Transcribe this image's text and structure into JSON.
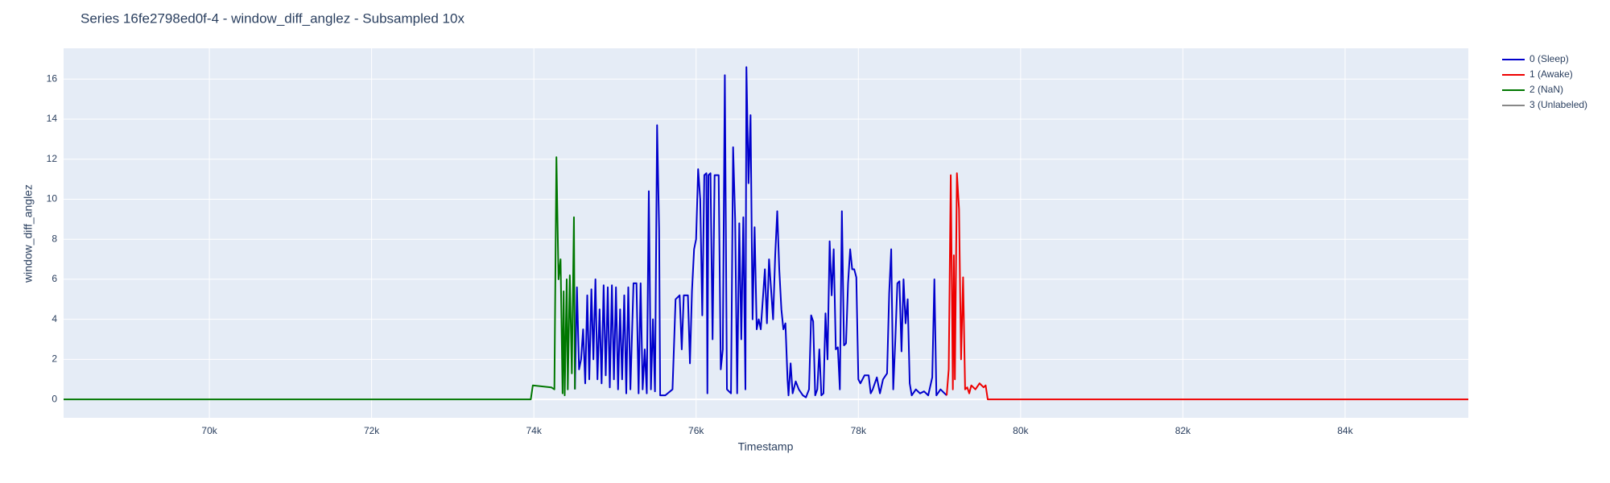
{
  "chart_data": {
    "type": "line",
    "title": "Series 16fe2798ed0f-4 - window_diff_anglez - Subsampled 10x",
    "x_label": "Timestamp",
    "y_label": "window_diff_anglez",
    "xlim": [
      68203,
      85519
    ],
    "ylim": [
      -0.92,
      17.54
    ],
    "xticks": [
      {
        "value": 70000,
        "label": "70k"
      },
      {
        "value": 72000,
        "label": "72k"
      },
      {
        "value": 74000,
        "label": "74k"
      },
      {
        "value": 76000,
        "label": "76k"
      },
      {
        "value": 78000,
        "label": "78k"
      },
      {
        "value": 80000,
        "label": "80k"
      },
      {
        "value": 82000,
        "label": "82k"
      },
      {
        "value": 84000,
        "label": "84k"
      }
    ],
    "yticks": [
      0,
      2,
      4,
      6,
      8,
      10,
      12,
      14,
      16
    ],
    "grid": true,
    "legend": "top-right",
    "series": [
      {
        "name": "0 (Sleep)",
        "color": "#0000cc",
        "x": [
          74506,
          74531,
          74557,
          74582,
          74607,
          74633,
          74658,
          74683,
          74709,
          74734,
          74759,
          74784,
          74810,
          74835,
          74860,
          74886,
          74911,
          74936,
          74962,
          74987,
          75012,
          75038,
          75063,
          75088,
          75114,
          75139,
          75164,
          75190,
          75228,
          75265,
          75291,
          75316,
          75341,
          75367,
          75392,
          75417,
          75443,
          75468,
          75493,
          75519,
          75544,
          75557,
          75620,
          75709,
          75747,
          75797,
          75823,
          75848,
          75899,
          75924,
          75949,
          75975,
          76000,
          76025,
          76051,
          76076,
          76101,
          76127,
          76139,
          76152,
          76177,
          76203,
          76228,
          76278,
          76304,
          76329,
          76354,
          76380,
          76405,
          76430,
          76456,
          76481,
          76506,
          76532,
          76557,
          76582,
          76608,
          76620,
          76646,
          76671,
          76696,
          76721,
          76747,
          76772,
          76797,
          76848,
          76873,
          76899,
          76924,
          76949,
          76975,
          77000,
          77025,
          77051,
          77076,
          77101,
          77127,
          77139,
          77165,
          77190,
          77228,
          77266,
          77316,
          77354,
          77392,
          77418,
          77443,
          77468,
          77494,
          77519,
          77544,
          77570,
          77595,
          77620,
          77646,
          77671,
          77696,
          77722,
          77747,
          77772,
          77797,
          77823,
          77848,
          77873,
          77899,
          77924,
          77949,
          77975,
          78000,
          78025,
          78076,
          78127,
          78152,
          78177,
          78228,
          78266,
          78304,
          78354,
          78380,
          78405,
          78430,
          78456,
          78481,
          78506,
          78532,
          78557,
          78582,
          78608,
          78633,
          78658,
          78709,
          78760,
          78810,
          78861,
          78911,
          78937,
          78962,
          79013,
          79063,
          79089
        ],
        "values": [
          0.5,
          5.6,
          1.5,
          2,
          3.5,
          0.8,
          5.2,
          1,
          5.5,
          2,
          6,
          1,
          4.5,
          0.8,
          5.7,
          1.2,
          5.6,
          0.6,
          5.7,
          1,
          5.6,
          0.5,
          4.5,
          1,
          5.2,
          0.3,
          5.6,
          0.5,
          5.8,
          5.8,
          0.3,
          5.8,
          0.5,
          2.5,
          0.3,
          10.4,
          0.5,
          4,
          0.4,
          13.7,
          8.5,
          0.2,
          0.2,
          0.5,
          5,
          5.2,
          2.5,
          5.2,
          5.2,
          1.8,
          5.4,
          7.5,
          8,
          11.5,
          10,
          4.2,
          11.2,
          11.3,
          0.3,
          11.2,
          11.3,
          3,
          11.2,
          11.2,
          1.5,
          2.5,
          16.2,
          0.5,
          0.4,
          0.3,
          12.6,
          9,
          0.3,
          8.8,
          3,
          9.1,
          0.5,
          16.6,
          10.8,
          14.2,
          4,
          8.6,
          3.5,
          4,
          3.5,
          6.5,
          3.8,
          7,
          5.5,
          4,
          7.2,
          9.4,
          6.5,
          4.5,
          3.5,
          3.8,
          1,
          0.2,
          1.8,
          0.3,
          0.9,
          0.5,
          0.2,
          0.1,
          0.5,
          4.2,
          3.9,
          0.2,
          0.5,
          2.5,
          0.2,
          0.3,
          4.3,
          2,
          7.9,
          5.2,
          7.5,
          2.5,
          2.6,
          0.5,
          9.4,
          2.7,
          2.8,
          5.8,
          7.5,
          6.5,
          6.5,
          6.1,
          1,
          0.8,
          1.2,
          1.2,
          0.3,
          0.5,
          1.1,
          0.3,
          1,
          1.3,
          5.3,
          7.5,
          0.5,
          3,
          5.8,
          5.9,
          2.4,
          6,
          3.8,
          5,
          0.8,
          0.2,
          0.5,
          0.3,
          0.4,
          0.2,
          1.1,
          6,
          0.2,
          0.5,
          0.3,
          0.2
        ]
      },
      {
        "name": "1 (Awake)",
        "color": "#ee0000",
        "x": [
          79089,
          79114,
          79139,
          79165,
          79177,
          79190,
          79215,
          79241,
          79266,
          79291,
          79316,
          79342,
          79367,
          79392,
          79443,
          79494,
          79544,
          79569,
          79595,
          85519
        ],
        "values": [
          0.2,
          1.5,
          11.2,
          0.5,
          7.2,
          1,
          11.3,
          9.5,
          2,
          6.1,
          0.5,
          0.6,
          0.3,
          0.7,
          0.5,
          0.8,
          0.6,
          0.7,
          0,
          0
        ]
      },
      {
        "name": "2 (NaN)",
        "color": "#007700",
        "x": [
          68203,
          73962,
          73987,
          74215,
          74253,
          74278,
          74304,
          74329,
          74354,
          74367,
          74380,
          74405,
          74418,
          74443,
          74468,
          74494,
          74506
        ],
        "values": [
          0,
          0,
          0.7,
          0.6,
          0.5,
          12.1,
          6,
          7,
          0.3,
          5.4,
          0.2,
          6,
          0.5,
          6.2,
          1.3,
          9.1,
          0.5
        ]
      },
      {
        "name": "3 (Unlabeled)",
        "color": "#888888",
        "x": [],
        "values": []
      }
    ]
  }
}
